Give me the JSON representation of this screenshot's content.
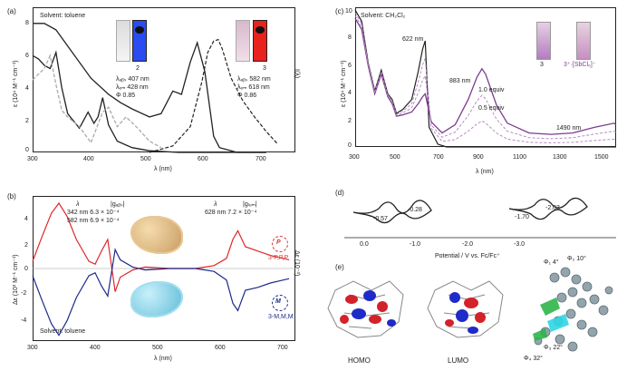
{
  "panel_a": {
    "label": "(a)",
    "solvent": "Solvent: toluene",
    "ylabel": "ε (10⁴ M⁻¹ cm⁻¹)",
    "xlabel": "λ (nm)",
    "right_label": "I(λ)",
    "xticks": [
      "300",
      "400",
      "500",
      "600",
      "700"
    ],
    "yticks": [
      "8",
      "6",
      "4",
      "2",
      "0"
    ],
    "legend2": {
      "name": "2",
      "abs": "λₐᵦₛ  407 nm",
      "em": "λₑₘ  428 nm",
      "phi": "Φ  0.85"
    },
    "legend3": {
      "name": "3",
      "abs": "λₐᵦₛ  582 nm",
      "em": "λₑₘ  618 nm",
      "phi": "Φ  0.86"
    },
    "vial_colors": [
      "#2a4cf0",
      "#e8231d"
    ]
  },
  "panel_b": {
    "label": "(b)",
    "solvent": "Solvent: toluene",
    "ylabel": "Δε (10³ M⁻¹ cm⁻¹)",
    "xlabel": "λ (nm)",
    "right_label": "Δε (10⁻³)",
    "xticks": [
      "300",
      "400",
      "500",
      "600",
      "700"
    ],
    "yticks": [
      "4",
      "2",
      "0",
      "-2",
      "-4"
    ],
    "col_h1": "λ",
    "col_h2": "|gₐᵦₛ|",
    "row1": "342 nm   6.3 × 10⁻⁴",
    "row2": "582 nm   6.9 × 10⁻⁴",
    "col_h3": "λ",
    "col_h4": "|gₗᵤₘ|",
    "row3": "628 nm   7.2 × 10⁻⁴",
    "p_label": "P",
    "p_name": "3-P,P,P",
    "m_label": "M",
    "m_name": "3-M,M,M"
  },
  "panel_c": {
    "label": "(c)",
    "solvent": "Solvent: CH₂Cl₂",
    "ylabel": "ε (10⁴ M⁻¹ cm⁻¹)",
    "xlabel": "λ (nm)",
    "xticks": [
      "300",
      "500",
      "700",
      "900",
      "1100",
      "1300",
      "1500"
    ],
    "yticks": [
      "10",
      "8",
      "6",
      "4",
      "2",
      "0"
    ],
    "ann1": "622 nm",
    "ann2": "883 nm",
    "ann3": "1490 nm",
    "ann_a": "1.0 equiv",
    "ann_b": "0.5 equiv",
    "vial1": "3",
    "vial2": "3⁺·[SbCl₆]⁻"
  },
  "panel_d": {
    "label": "(d)",
    "e1": "-0.57",
    "e2": "-0.28",
    "e3": "-1.70",
    "e4": "-2.03",
    "xlabel": "Potential / V vs. Fc/Fc⁺",
    "xticks": [
      "0.0",
      "-1.0",
      "-2.0",
      "-3.0"
    ]
  },
  "panel_e": {
    "label": "(e)",
    "homo": "HOMO",
    "lumo": "LUMO",
    "m1": "Φ₁ 4°",
    "m2": "Φ₂ 10°",
    "m3": "Φ₃ 22°",
    "m4": "Φ₄ 32°"
  },
  "chart_data": [
    {
      "type": "line",
      "title": "",
      "xlabel": "λ (nm)",
      "ylabel": "ε (10⁴ M⁻¹ cm⁻¹)",
      "xlim": [
        300,
        750
      ],
      "ylim": [
        0,
        9
      ],
      "series": [
        {
          "name": "2",
          "style": "abs",
          "x": [
            300,
            310,
            320,
            330,
            340,
            350,
            360,
            380,
            395,
            405,
            412,
            420,
            430,
            445,
            470,
            500,
            550,
            600,
            700
          ],
          "y": [
            6.0,
            5.8,
            5.4,
            5.2,
            6.2,
            4.0,
            2.4,
            1.5,
            2.5,
            1.8,
            2.2,
            3.4,
            1.7,
            0.7,
            0.3,
            0.1,
            0,
            0,
            0
          ]
        },
        {
          "name": "2",
          "style": "em",
          "x": [
            300,
            320,
            330,
            340,
            350,
            360,
            380,
            400,
            420,
            430,
            445,
            460,
            480,
            500,
            520
          ],
          "y": [
            4.5,
            5.2,
            6.0,
            4.2,
            2.6,
            2.2,
            1.6,
            0.6,
            2.5,
            2.8,
            1.6,
            2.2,
            1.5,
            0.7,
            0.3
          ]
        },
        {
          "name": "3",
          "style": "abs",
          "x": [
            300,
            320,
            340,
            360,
            400,
            430,
            450,
            470,
            500,
            520,
            540,
            555,
            570,
            582,
            595,
            610,
            620,
            650,
            700
          ],
          "y": [
            8.0,
            8.0,
            7.6,
            6.6,
            4.6,
            3.6,
            3.1,
            2.7,
            2.2,
            2.4,
            3.8,
            3.6,
            5.6,
            6.8,
            5.0,
            1.0,
            0.3,
            0,
            0
          ]
        },
        {
          "name": "3",
          "style": "em",
          "x": [
            500,
            540,
            570,
            590,
            600,
            610,
            618,
            625,
            640,
            660,
            680,
            700,
            720
          ],
          "y": [
            0,
            0.4,
            1.6,
            4.4,
            6.2,
            6.9,
            7.0,
            6.4,
            4.6,
            3.2,
            2.2,
            1.3,
            0.5
          ]
        }
      ]
    },
    {
      "type": "line",
      "title": "",
      "xlabel": "λ (nm)",
      "ylabel": "Δε (10³ M⁻¹ cm⁻¹)",
      "xlim": [
        300,
        720
      ],
      "ylim": [
        -5,
        5
      ],
      "series": [
        {
          "name": "3-P,P,P",
          "x": [
            300,
            315,
            330,
            342,
            355,
            370,
            390,
            400,
            410,
            420,
            432,
            440,
            460,
            480,
            520,
            560,
            590,
            610,
            620,
            628,
            640,
            660,
            680,
            700,
            710
          ],
          "y": [
            0.5,
            2.2,
            3.8,
            4.5,
            3.6,
            2.0,
            0.5,
            0.3,
            1.2,
            2.0,
            -1.6,
            -0.6,
            -0.1,
            0.1,
            0,
            0,
            0.2,
            0.7,
            2.0,
            2.6,
            1.5,
            1.2,
            0.9,
            0.7,
            0.6
          ]
        },
        {
          "name": "3-M,M,M",
          "x": [
            300,
            315,
            330,
            342,
            355,
            370,
            390,
            400,
            410,
            420,
            432,
            440,
            460,
            480,
            520,
            560,
            590,
            610,
            620,
            628,
            640,
            660,
            680,
            700,
            710
          ],
          "y": [
            -0.5,
            -2.2,
            -3.8,
            -4.6,
            -3.6,
            -2.0,
            -0.5,
            -0.3,
            -1.2,
            -1.9,
            1.3,
            0.6,
            0.1,
            -0.1,
            0,
            0,
            -0.2,
            -0.8,
            -2.4,
            -2.9,
            -1.5,
            -1.3,
            -1.0,
            -0.8,
            -0.7
          ]
        }
      ]
    },
    {
      "type": "line",
      "title": "",
      "xlabel": "λ (nm)",
      "ylabel": "ε (10⁴ M⁻¹ cm⁻¹)",
      "xlim": [
        300,
        1500
      ],
      "ylim": [
        0,
        10
      ],
      "series": [
        {
          "name": "3",
          "x": [
            300,
            330,
            360,
            390,
            420,
            450,
            470,
            490,
            520,
            560,
            590,
            610,
            622,
            640,
            680,
            720,
            800,
            900,
            1000,
            1200,
            1400,
            1500
          ],
          "y": [
            9.8,
            9.0,
            6.0,
            4.0,
            5.5,
            3.8,
            3.4,
            2.4,
            2.7,
            3.4,
            5.4,
            7.0,
            7.6,
            1.4,
            0.2,
            0,
            0,
            0,
            0,
            0,
            0,
            0
          ]
        },
        {
          "name": "3⁺·[SbCl₆]⁻",
          "x": [
            300,
            330,
            360,
            390,
            420,
            450,
            470,
            490,
            520,
            560,
            590,
            610,
            622,
            650,
            700,
            760,
            820,
            860,
            883,
            900,
            950,
            1000,
            1100,
            1200,
            1300,
            1400,
            1460,
            1490,
            1500
          ],
          "y": [
            9.2,
            8.4,
            5.8,
            3.8,
            5.2,
            3.6,
            3.1,
            2.2,
            2.3,
            2.5,
            3.1,
            3.6,
            3.8,
            1.8,
            1.0,
            1.6,
            3.4,
            5.0,
            5.6,
            5.2,
            3.0,
            1.7,
            1.0,
            0.9,
            1.0,
            1.4,
            1.6,
            1.7,
            1.6
          ]
        }
      ]
    }
  ]
}
